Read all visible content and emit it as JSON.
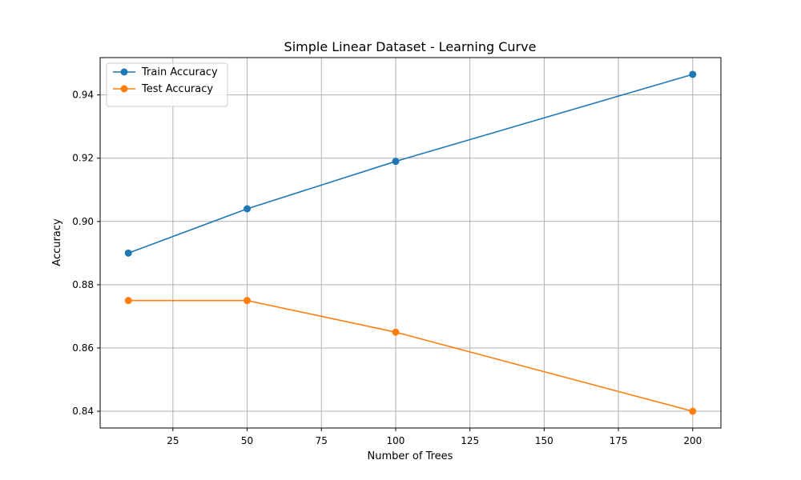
{
  "chart_data": {
    "type": "line",
    "title": "Simple Linear Dataset - Learning Curve",
    "xlabel": "Number of Trees",
    "ylabel": "Accuracy",
    "x": [
      10,
      50,
      100,
      200
    ],
    "xlim": [
      0.5,
      209.5
    ],
    "ylim": [
      0.8347,
      0.9518
    ],
    "xticks": [
      25,
      50,
      75,
      100,
      125,
      150,
      175,
      200
    ],
    "yticks": [
      0.84,
      0.86,
      0.88,
      0.9,
      0.92,
      0.94
    ],
    "ytick_decimals": 2,
    "grid": true,
    "legend_position": "top-left",
    "series": [
      {
        "name": "Train Accuracy",
        "color": "#1f77b4",
        "values": [
          0.89,
          0.904,
          0.919,
          0.9465
        ]
      },
      {
        "name": "Test Accuracy",
        "color": "#ff7f0e",
        "values": [
          0.875,
          0.875,
          0.865,
          0.84
        ]
      }
    ]
  }
}
